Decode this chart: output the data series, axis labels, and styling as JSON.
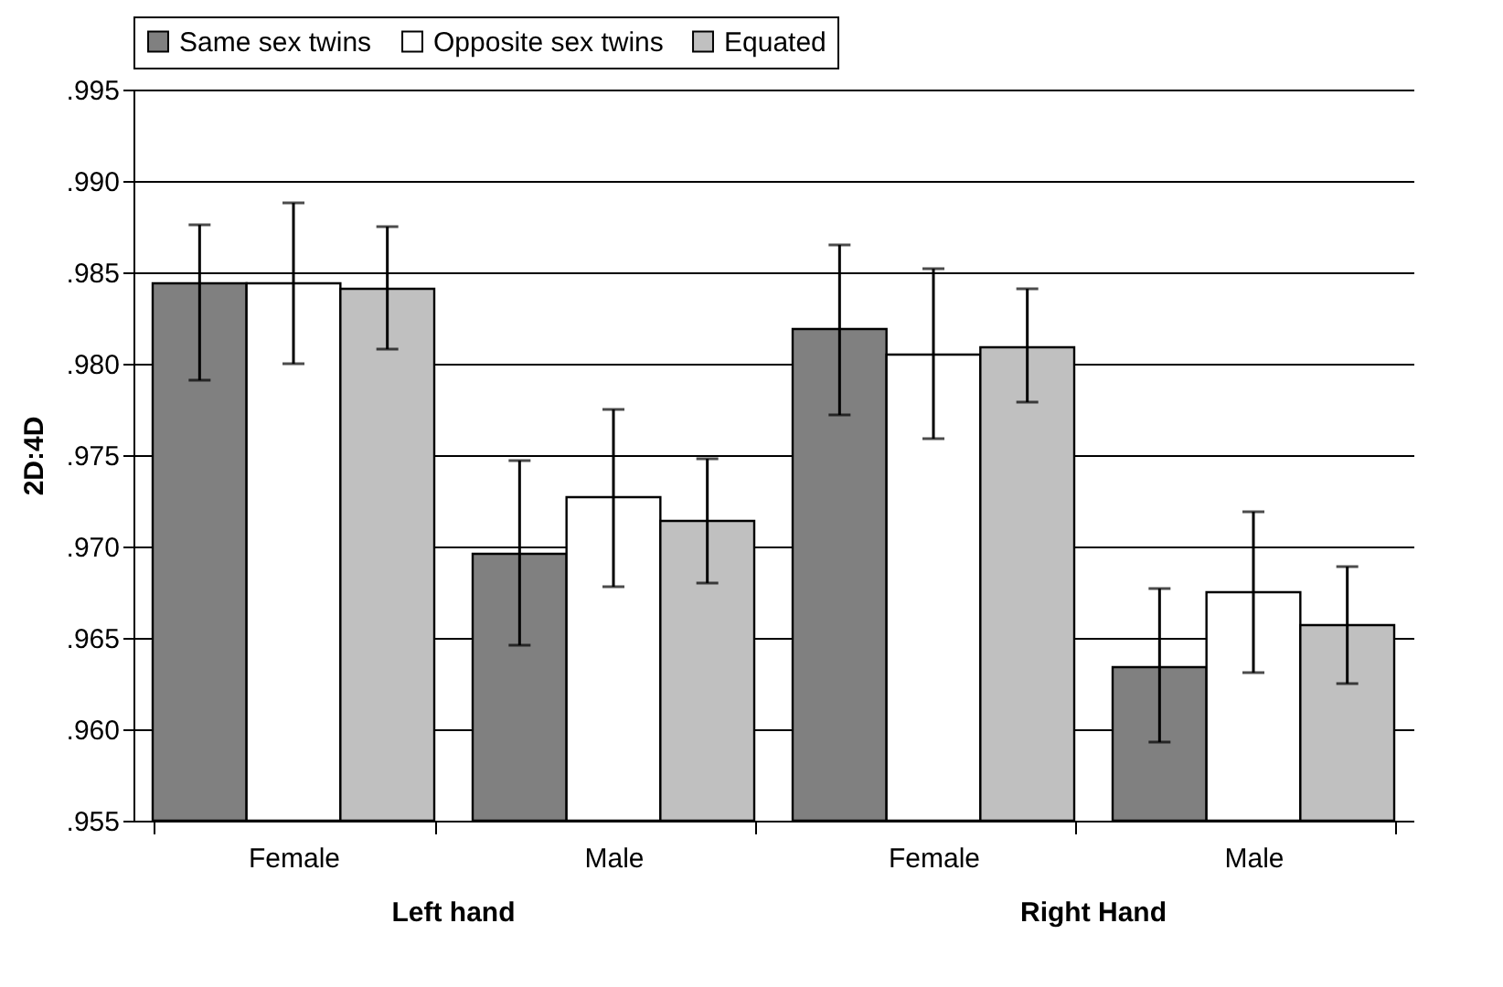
{
  "chart_data": {
    "type": "bar",
    "ylabel": "2D:4D",
    "categories": [
      "Female",
      "Male",
      "Female",
      "Male"
    ],
    "series": [
      {
        "name": "Same sex twins",
        "color": "#808080",
        "values": [
          0.9844,
          0.9696,
          0.9819,
          0.9634
        ],
        "errors": [
          [
            0.9791,
            0.9876
          ],
          [
            0.9646,
            0.9747
          ],
          [
            0.9772,
            0.9865
          ],
          [
            0.9593,
            0.9677
          ]
        ]
      },
      {
        "name": "Opposite sex twins",
        "color": "#ffffff",
        "values": [
          0.9844,
          0.9727,
          0.9805,
          0.9675
        ],
        "errors": [
          [
            0.98,
            0.9888
          ],
          [
            0.9678,
            0.9775
          ],
          [
            0.9759,
            0.9852
          ],
          [
            0.9631,
            0.9719
          ]
        ]
      },
      {
        "name": "Equated",
        "color": "#c0c0c0",
        "values": [
          0.9841,
          0.9714,
          0.9809,
          0.9657
        ],
        "errors": [
          [
            0.9808,
            0.9875
          ],
          [
            0.968,
            0.9748
          ],
          [
            0.9779,
            0.9841
          ],
          [
            0.9625,
            0.9689
          ]
        ]
      }
    ],
    "ylim": [
      0.955,
      0.995
    ],
    "yticks": [
      {
        "value": 0.955,
        "label": ".955"
      },
      {
        "value": 0.96,
        "label": ".960"
      },
      {
        "value": 0.965,
        "label": ".965"
      },
      {
        "value": 0.97,
        "label": ".970"
      },
      {
        "value": 0.975,
        "label": ".975"
      },
      {
        "value": 0.98,
        "label": ".980"
      },
      {
        "value": 0.985,
        "label": ".985"
      },
      {
        "value": 0.99,
        "label": ".990"
      },
      {
        "value": 0.995,
        "label": ".995"
      }
    ],
    "annotations": [
      "Left hand",
      "Right Hand"
    ],
    "grid": "y",
    "legend": "top"
  }
}
